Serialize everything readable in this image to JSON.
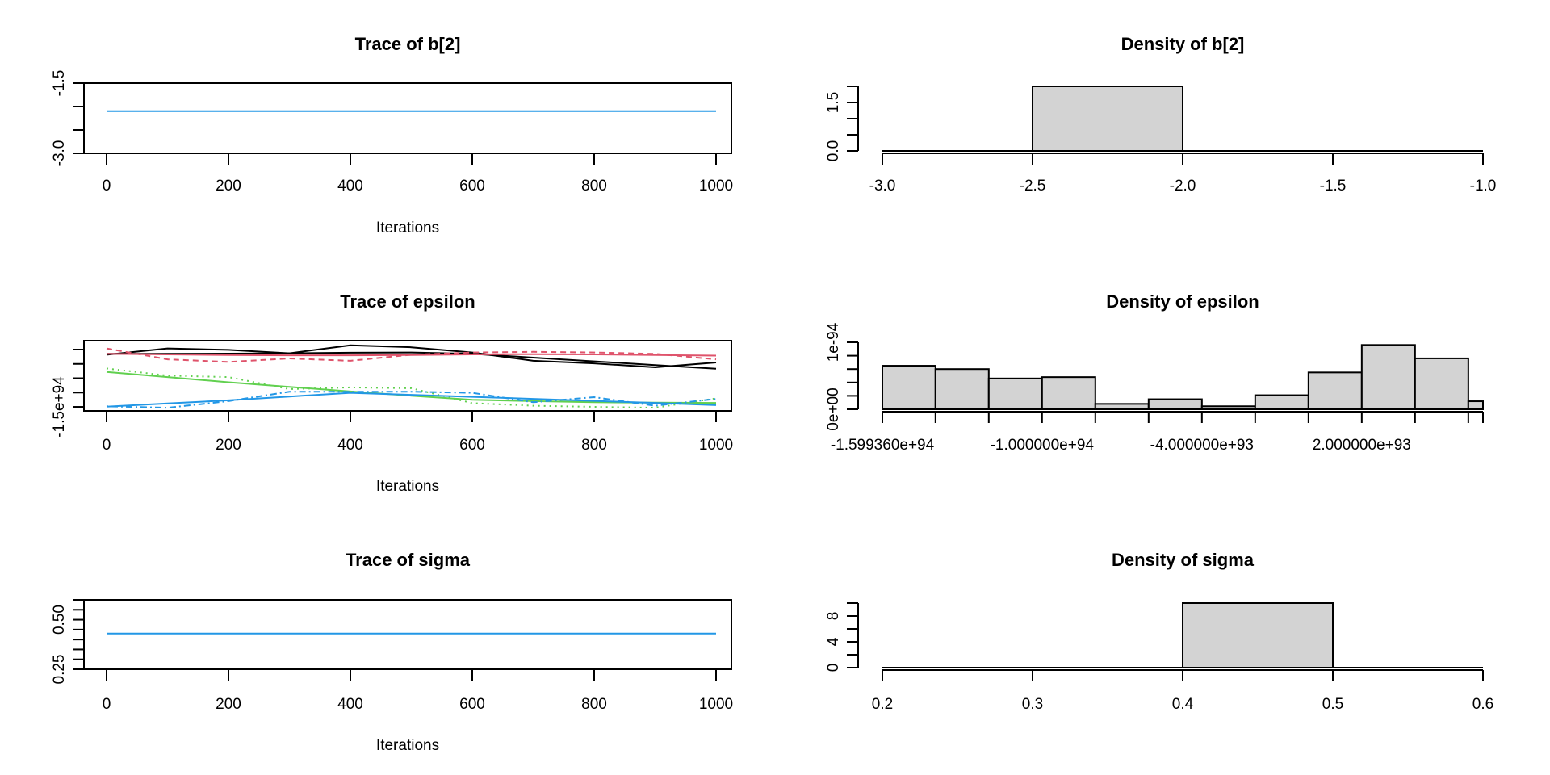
{
  "colors": {
    "chain1": "#000000",
    "chain2": "#DF536B",
    "chain3": "#61D04F",
    "chain4": "#2297E6",
    "bar_fill": "#D3D3D3"
  },
  "chart_data": [
    {
      "id": "trace-b2",
      "type": "line",
      "title": "Trace of b[2]",
      "xlabel": "Iterations",
      "ylabel": "",
      "xlim": [
        0,
        1000
      ],
      "ylim": [
        -3.0,
        -1.5
      ],
      "x_ticks": [
        0,
        200,
        400,
        600,
        800,
        1000
      ],
      "x_tick_labels": [
        "0",
        "200",
        "400",
        "600",
        "800",
        "1000"
      ],
      "y_ticks": [
        -3.0,
        -2.5,
        -2.0,
        -1.5
      ],
      "y_tick_labels": [
        "-3.0",
        "",
        "",
        "-1.5"
      ],
      "series": [
        {
          "name": "chain 4 (visible)",
          "color": "#2297E6",
          "style": "solid",
          "x": [
            0,
            1000
          ],
          "y": [
            -2.1,
            -2.1
          ]
        }
      ]
    },
    {
      "id": "density-b2",
      "type": "bar",
      "title": "Density of b[2]",
      "xlabel": "",
      "ylabel": "",
      "xlim": [
        -3.0,
        -1.0
      ],
      "ylim": [
        0,
        2.0
      ],
      "x_ticks": [
        -3.0,
        -2.5,
        -2.0,
        -1.5,
        -1.0
      ],
      "x_tick_labels": [
        "-3.0",
        "-2.5",
        "-2.0",
        "-1.5",
        "-1.0"
      ],
      "y_ticks": [
        0,
        0.5,
        1.0,
        1.5,
        2.0
      ],
      "y_tick_labels": [
        "0.0",
        "",
        "",
        "1.5",
        ""
      ],
      "breaks": [
        -3.0,
        -2.5,
        -2.0,
        -1.5,
        -1.0
      ],
      "values": [
        0,
        2.0,
        0,
        0
      ]
    },
    {
      "id": "trace-epsilon",
      "type": "line",
      "title": "Trace of epsilon",
      "xlabel": "Iterations",
      "ylabel": "",
      "xlim": [
        0,
        1000
      ],
      "ylim": [
        -1.64e+94,
        8.1e+93
      ],
      "value_unit": 1e+93,
      "x_ticks": [
        0,
        200,
        400,
        600,
        800,
        1000
      ],
      "x_tick_labels": [
        "0",
        "200",
        "400",
        "600",
        "800",
        "1000"
      ],
      "y_ticks": [
        -1.5e+94,
        -1e+94,
        -5e+93,
        0,
        5e+93
      ],
      "y_tick_labels": [
        "-1.5e+94",
        "",
        "",
        "",
        ""
      ],
      "x": [
        0,
        100,
        200,
        300,
        400,
        500,
        600,
        700,
        800,
        900,
        1000
      ],
      "series": [
        {
          "name": "chain 1 raw",
          "color": "#000000",
          "style": "solid",
          "y_e93": [
            3.2,
            5.4,
            4.9,
            3.7,
            6.5,
            5.8,
            4.0,
            1.1,
            0.2,
            -1.2,
            0.5
          ]
        },
        {
          "name": "chain 1 smooth",
          "color": "#000000",
          "style": "solid",
          "y_e93": [
            3.5,
            3.5,
            3.6,
            3.7,
            3.9,
            4.0,
            3.5,
            2.2,
            0.9,
            -0.4,
            -1.7
          ]
        },
        {
          "name": "chain 2 raw",
          "color": "#DF536B",
          "style": "dashed",
          "y_e93": [
            5.4,
            1.6,
            0.7,
            1.9,
            1.1,
            3.2,
            4.0,
            4.2,
            4.0,
            3.5,
            1.6
          ]
        },
        {
          "name": "chain 2 smooth",
          "color": "#DF536B",
          "style": "solid",
          "y_e93": [
            3.5,
            3.3,
            3.1,
            3.0,
            3.0,
            3.1,
            3.3,
            3.4,
            3.3,
            3.1,
            2.9
          ]
        },
        {
          "name": "chain 3 raw",
          "color": "#61D04F",
          "style": "dotted",
          "y_e93": [
            -1.6,
            -4.1,
            -4.6,
            -8.8,
            -8.2,
            -8.5,
            -13.7,
            -14.6,
            -15.0,
            -15.3,
            -12.0
          ]
        },
        {
          "name": "chain 3 smooth",
          "color": "#61D04F",
          "style": "solid",
          "y_e93": [
            -2.8,
            -4.6,
            -6.4,
            -8.0,
            -9.6,
            -11.1,
            -12.5,
            -13.0,
            -13.4,
            -13.5,
            -13.6
          ]
        },
        {
          "name": "chain 4 raw",
          "color": "#2297E6",
          "style": "dotdash",
          "y_e93": [
            -14.8,
            -15.3,
            -13.0,
            -9.7,
            -9.7,
            -9.7,
            -10.1,
            -13.4,
            -11.6,
            -14.6,
            -12.2
          ]
        },
        {
          "name": "chain 4 smooth",
          "color": "#2297E6",
          "style": "solid",
          "y_e93": [
            -14.9,
            -13.8,
            -12.7,
            -11.4,
            -10.1,
            -10.8,
            -11.5,
            -12.2,
            -12.9,
            -13.6,
            -14.4
          ]
        }
      ]
    },
    {
      "id": "density-epsilon",
      "type": "bar",
      "title": "Density of epsilon",
      "xlabel": "",
      "ylabel": "",
      "xlim": [
        -1.59936e+94,
        6.55e+93
      ],
      "ylim": [
        0,
        1e-94
      ],
      "x_ticks": [
        -1.59936e+94,
        -1.4e+94,
        -1.2e+94,
        -1e+94,
        -8e+93,
        -6e+93,
        -4e+93,
        -2e+93,
        0,
        2e+93,
        4e+93,
        6e+93,
        6.55e+93
      ],
      "x_tick_labels": [
        "-1.599360e+94",
        "",
        "",
        "-1.000000e+94",
        "",
        "",
        "-4.000000e+93",
        "",
        "",
        "2.000000e+93",
        "",
        "",
        ""
      ],
      "y_ticks": [
        0,
        2e-95,
        4e-95,
        6e-95,
        8e-95,
        1e-94
      ],
      "y_tick_labels": [
        "0e+00",
        "",
        "",
        "",
        "",
        "1e-94"
      ],
      "breaks": [
        -1.59936e+94,
        -1.4e+94,
        -1.2e+94,
        -1e+94,
        -8e+93,
        -6e+93,
        -4e+93,
        -2e+93,
        0,
        2e+93,
        4e+93,
        6e+93,
        6.55e+93
      ],
      "values": [
        6.5e-95,
        6e-95,
        4.6e-95,
        4.8e-95,
        8e-96,
        1.5e-95,
        4.5e-96,
        2.1e-95,
        5.5e-95,
        9.6e-95,
        7.6e-95,
        1.2e-95
      ]
    },
    {
      "id": "trace-sigma",
      "type": "line",
      "title": "Trace of sigma",
      "xlabel": "Iterations",
      "ylabel": "",
      "xlim": [
        0,
        1000
      ],
      "ylim": [
        0.25,
        0.6
      ],
      "x_ticks": [
        0,
        200,
        400,
        600,
        800,
        1000
      ],
      "x_tick_labels": [
        "0",
        "200",
        "400",
        "600",
        "800",
        "1000"
      ],
      "y_ticks": [
        0.25,
        0.3,
        0.35,
        0.4,
        0.45,
        0.5,
        0.55,
        0.6
      ],
      "y_tick_labels": [
        "0.25",
        "",
        "",
        "",
        "",
        "0.50",
        "",
        ""
      ],
      "series": [
        {
          "name": "chain 4 (visible)",
          "color": "#2297E6",
          "style": "solid",
          "x": [
            0,
            1000
          ],
          "y": [
            0.43,
            0.43
          ]
        }
      ]
    },
    {
      "id": "density-sigma",
      "type": "bar",
      "title": "Density of sigma",
      "xlabel": "",
      "ylabel": "",
      "xlim": [
        0.2,
        0.6
      ],
      "ylim": [
        0,
        10
      ],
      "x_ticks": [
        0.2,
        0.3,
        0.4,
        0.5,
        0.6
      ],
      "x_tick_labels": [
        "0.2",
        "0.3",
        "0.4",
        "0.5",
        "0.6"
      ],
      "y_ticks": [
        0,
        2,
        4,
        6,
        8,
        10
      ],
      "y_tick_labels": [
        "0",
        "",
        "4",
        "",
        "8",
        ""
      ],
      "breaks": [
        0.2,
        0.3,
        0.4,
        0.5,
        0.6
      ],
      "values": [
        0,
        0,
        10,
        0
      ]
    }
  ]
}
